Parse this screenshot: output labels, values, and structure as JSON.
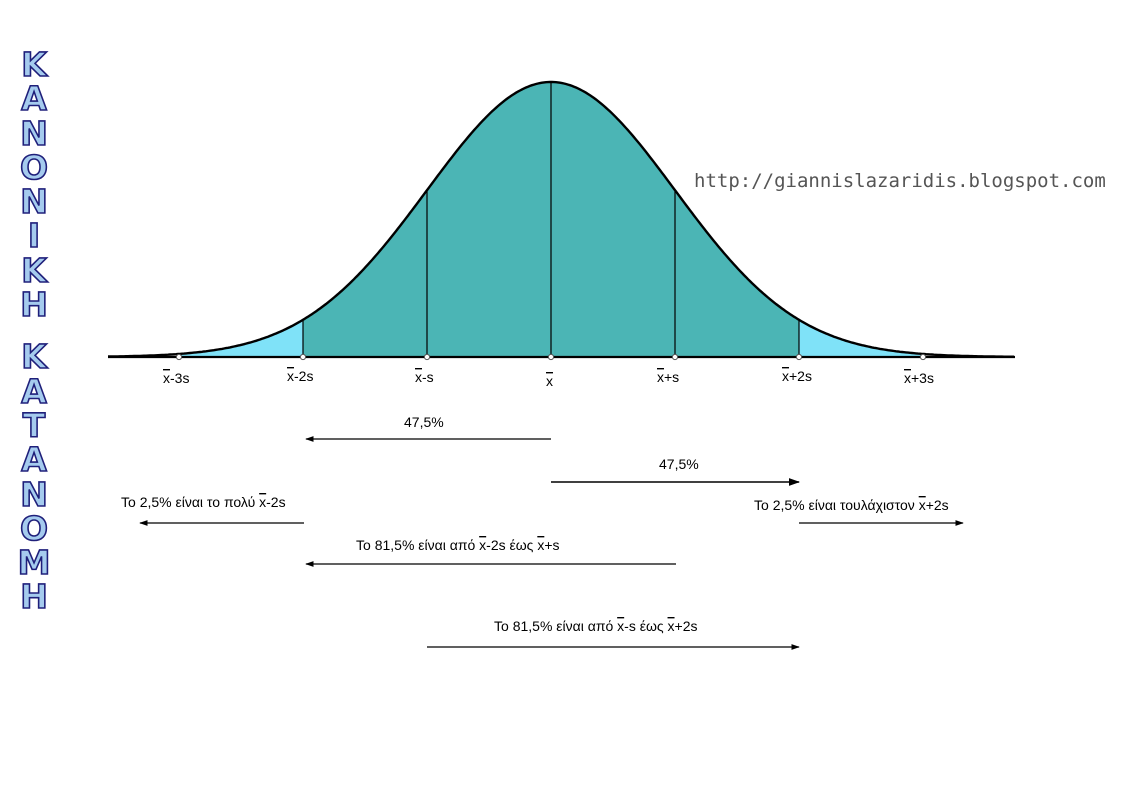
{
  "title_vertical": [
    "Κ",
    "Α",
    "Ν",
    "Ο",
    "Ν",
    "Ι",
    "Κ",
    "Η",
    " ",
    "Κ",
    "Α",
    "Τ",
    "Α",
    "Ν",
    "Ο",
    "Μ",
    "Η"
  ],
  "blog_url": "http://giannislazaridis.blogspot.com",
  "colors": {
    "curve_fill": "#4bb5b5",
    "tail_fill": "#7fe2f8",
    "outline": "#000000"
  },
  "axis_marks": [
    {
      "base": "x",
      "suffix": "-3s"
    },
    {
      "base": "x",
      "suffix": "-2s"
    },
    {
      "base": "x",
      "suffix": "-s"
    },
    {
      "base": "x",
      "suffix": ""
    },
    {
      "base": "x",
      "suffix": "+s"
    },
    {
      "base": "x",
      "suffix": "+2s"
    },
    {
      "base": "x",
      "suffix": "+3s"
    }
  ],
  "annotations": {
    "left_half": "47,5%",
    "right_half": "47,5%",
    "lower_tail": {
      "prefix": "Το 2,5% είναι το πολύ ",
      "base": "x",
      "suffix": "-2s"
    },
    "upper_tail": {
      "prefix": "Το 2,5% είναι τουλάχιστον ",
      "base": "x",
      "suffix": "+2s"
    },
    "range_a": {
      "prefix": "Το 81,5% είναι από ",
      "a_base": "x",
      "a_suffix": "-2s",
      "mid": " έως ",
      "b_base": "x",
      "b_suffix": "+s"
    },
    "range_b": {
      "prefix": "Το 81,5% είναι από ",
      "a_base": "x",
      "a_suffix": "-s",
      "mid": " έως ",
      "b_base": "x",
      "b_suffix": "+2s"
    }
  }
}
